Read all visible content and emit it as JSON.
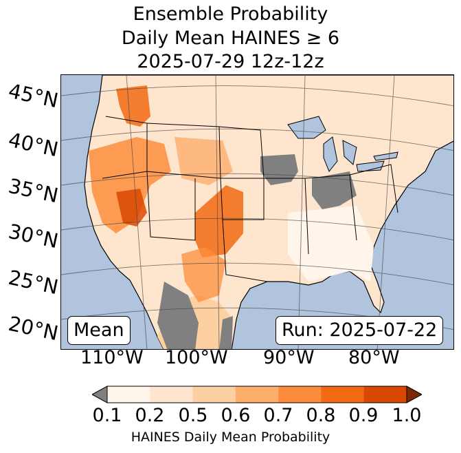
{
  "title": {
    "line1": "Ensemble Probability",
    "line2": "Daily Mean HAINES ≥ 6",
    "line3": "2025-07-29 12z-12z"
  },
  "map": {
    "type": "probability-map",
    "region": "Continental United States",
    "lat_labels": [
      "45°N",
      "40°N",
      "35°N",
      "30°N",
      "25°N",
      "20°N"
    ],
    "lon_labels": [
      "110°W",
      "100°W",
      "90°W",
      "80°W"
    ],
    "mean_badge": "Mean",
    "run_badge": "Run: 2025-07-22",
    "colors": {
      "ocean": "#b0c4de",
      "lakes": "#b0c4de",
      "gray_below": "#808080",
      "land": "#fff5eb"
    }
  },
  "colorbar": {
    "label": "HAINES Daily Mean Probability",
    "ticks": [
      "0.1",
      "0.2",
      "0.5",
      "0.6",
      "0.7",
      "0.8",
      "0.9",
      "1.0"
    ],
    "colors": [
      "#fff5eb",
      "#fee6ce",
      "#fdd0a2",
      "#fdae6b",
      "#fd8d3c",
      "#f16913",
      "#d94801",
      "#a63603"
    ],
    "under_color": "#808080",
    "over_color": "#7f2704"
  }
}
